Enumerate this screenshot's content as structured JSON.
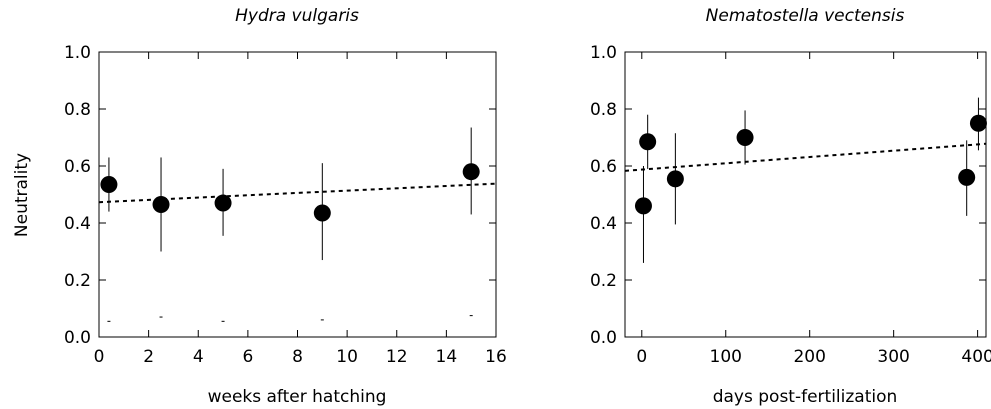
{
  "chart_data": [
    {
      "type": "scatter",
      "title": "Hydra vulgaris",
      "xlabel": "weeks after hatching",
      "ylabel": "Neutrality",
      "xlim": [
        0,
        16
      ],
      "ylim": [
        0,
        1.0
      ],
      "xticks": [
        0,
        2,
        4,
        6,
        8,
        10,
        12,
        14,
        16
      ],
      "yticks": [
        "0.0",
        "0.2",
        "0.4",
        "0.6",
        "0.8",
        "1.0"
      ],
      "points": [
        {
          "x": 0.4,
          "y": 0.535,
          "ylow": 0.44,
          "yhigh": 0.63
        },
        {
          "x": 2.5,
          "y": 0.465,
          "ylow": 0.3,
          "yhigh": 0.63
        },
        {
          "x": 5.0,
          "y": 0.47,
          "ylow": 0.355,
          "yhigh": 0.59
        },
        {
          "x": 9.0,
          "y": 0.435,
          "ylow": 0.27,
          "yhigh": 0.61
        },
        {
          "x": 15.0,
          "y": 0.58,
          "ylow": 0.43,
          "yhigh": 0.735
        }
      ],
      "baseline_marks": [
        {
          "x": 0.4,
          "y": 0.055
        },
        {
          "x": 2.5,
          "y": 0.07
        },
        {
          "x": 5.0,
          "y": 0.055
        },
        {
          "x": 9.0,
          "y": 0.06
        },
        {
          "x": 15.0,
          "y": 0.075
        }
      ],
      "trend": {
        "x": [
          0,
          16
        ],
        "y": [
          0.473,
          0.538
        ],
        "style": "dashed"
      },
      "grid": false
    },
    {
      "type": "scatter",
      "title": "Nematostella vectensis",
      "xlabel": "days post-fertilization",
      "ylabel": "",
      "xlim": [
        -20,
        410
      ],
      "ylim": [
        0,
        1.0
      ],
      "xticks": [
        0,
        100,
        200,
        300,
        400
      ],
      "yticks": [
        "0.0",
        "0.2",
        "0.4",
        "0.6",
        "0.8",
        "1.0"
      ],
      "points": [
        {
          "x": 2,
          "y": 0.46,
          "ylow": 0.26,
          "yhigh": 0.6
        },
        {
          "x": 7,
          "y": 0.685,
          "ylow": 0.59,
          "yhigh": 0.78
        },
        {
          "x": 40,
          "y": 0.555,
          "ylow": 0.395,
          "yhigh": 0.715
        },
        {
          "x": 123,
          "y": 0.7,
          "ylow": 0.605,
          "yhigh": 0.795
        },
        {
          "x": 387,
          "y": 0.56,
          "ylow": 0.425,
          "yhigh": 0.69
        },
        {
          "x": 401,
          "y": 0.75,
          "ylow": 0.655,
          "yhigh": 0.84
        }
      ],
      "trend": {
        "x": [
          -20,
          410
        ],
        "y": [
          0.583,
          0.678
        ],
        "style": "dashed"
      },
      "grid": false
    }
  ]
}
